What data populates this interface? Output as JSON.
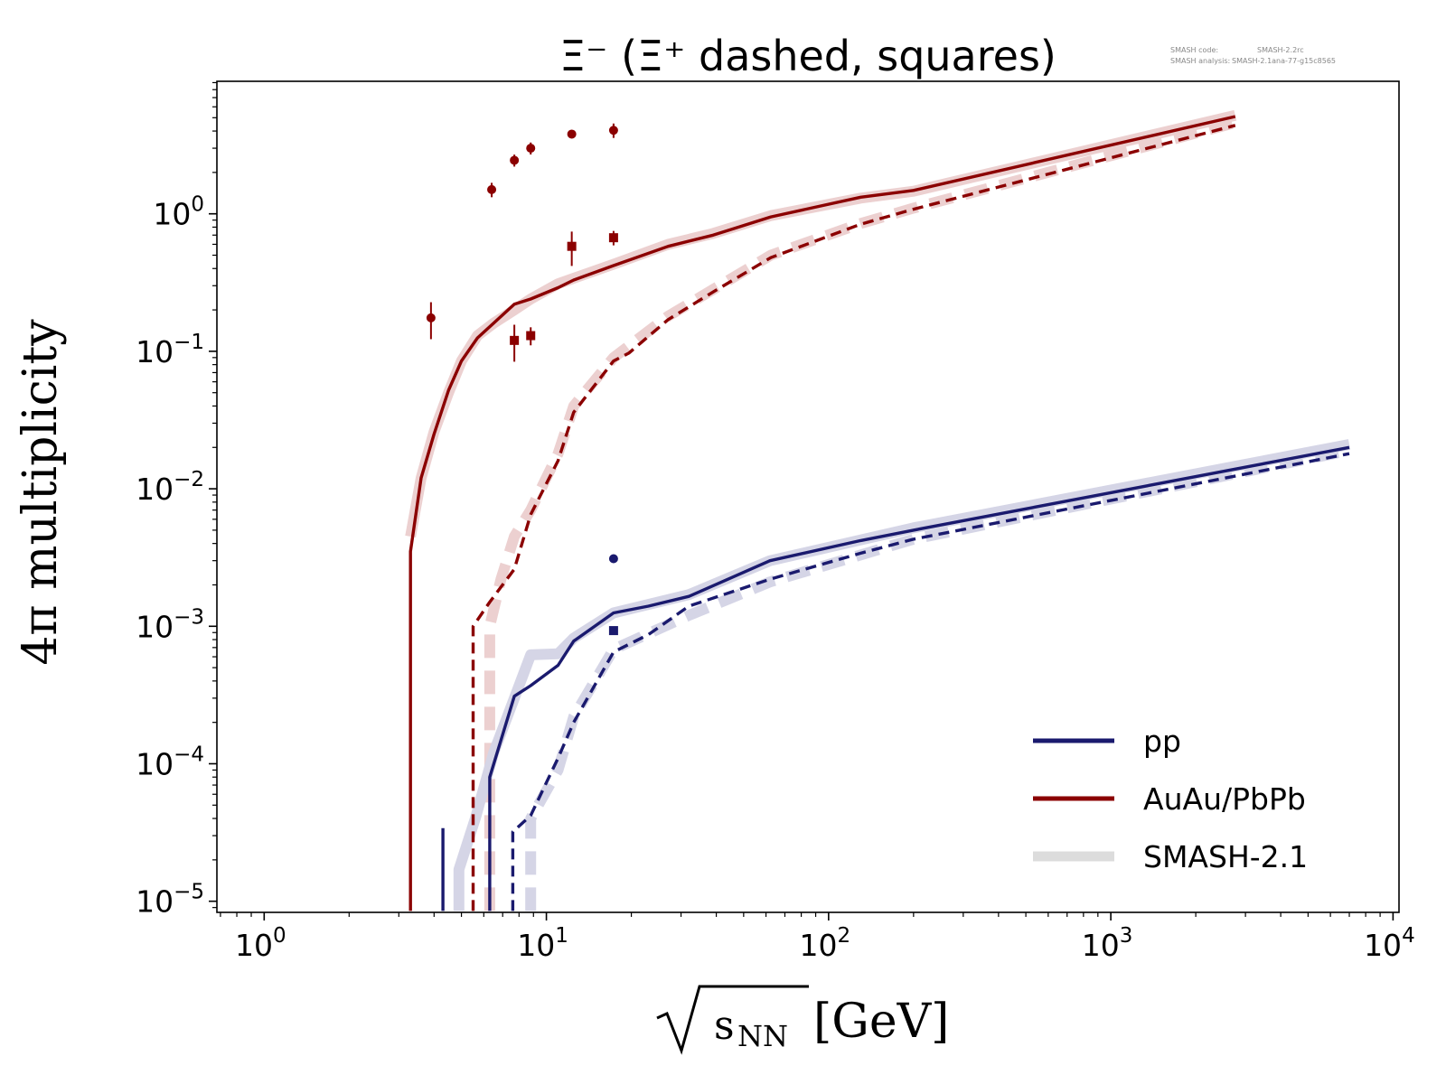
{
  "chart_data": {
    "type": "line",
    "title": "Ξ⁻ (Ξ⁺ dashed, squares)",
    "meta": {
      "code_label": "SMASH code:",
      "code_value": "SMASH-2.2rc",
      "analysis_label": "SMASH analysis:",
      "analysis_value": "SMASH-2.1ana-77-g15c8565"
    },
    "xlabel_radical_arg": "s",
    "xlabel_subscript": "NN",
    "xlabel_unit": "[GeV]",
    "ylabel": "4π multiplicity",
    "x_scale": "log",
    "y_scale": "log",
    "xlim": [
      0.68,
      10500
    ],
    "ylim": [
      8.3e-06,
      9.2
    ],
    "x_ticks": [
      {
        "value": 1,
        "base": "10",
        "exp": "0"
      },
      {
        "value": 10,
        "base": "10",
        "exp": "1"
      },
      {
        "value": 100,
        "base": "10",
        "exp": "2"
      },
      {
        "value": 1000,
        "base": "10",
        "exp": "3"
      },
      {
        "value": 10000,
        "base": "10",
        "exp": "4"
      }
    ],
    "y_ticks": [
      {
        "value": 1e-05,
        "base": "10",
        "exp": "−5"
      },
      {
        "value": 0.0001,
        "base": "10",
        "exp": "−4"
      },
      {
        "value": 0.001,
        "base": "10",
        "exp": "−3"
      },
      {
        "value": 0.01,
        "base": "10",
        "exp": "−2"
      },
      {
        "value": 0.1,
        "base": "10",
        "exp": "−1"
      },
      {
        "value": 1,
        "base": "10",
        "exp": "0"
      }
    ],
    "colors": {
      "pp": "#1a1a6e",
      "auau": "#8b0000",
      "smash_pp": "#d5d5e6",
      "smash_auau": "#ecd0d0",
      "legend_smash": "#dcdcdc"
    },
    "legend": {
      "position": "lower-right",
      "entries": [
        {
          "label": "pp",
          "color": "#1a1a6e"
        },
        {
          "label": "AuAu/PbPb",
          "color": "#8b0000"
        },
        {
          "label": "SMASH-2.1",
          "color": "#dcdcdc"
        }
      ]
    },
    "series": [
      {
        "legend": "AuAu/PbPb",
        "particle": "Xi-",
        "style": "solid",
        "color": "#8b0000",
        "x": [
          3.3,
          3.3,
          3.6,
          4.0,
          4.5,
          5.0,
          5.7,
          6.5,
          7.7,
          8.8,
          11.0,
          12.5,
          17.3,
          27.0,
          39.0,
          62.4,
          130.0,
          200.0,
          2760.0
        ],
        "y": [
          8.5e-06,
          0.0035,
          0.012,
          0.025,
          0.052,
          0.085,
          0.125,
          0.16,
          0.22,
          0.24,
          0.29,
          0.33,
          0.42,
          0.58,
          0.7,
          0.95,
          1.32,
          1.48,
          5.1
        ]
      },
      {
        "legend": "AuAu/PbPb",
        "particle": "Xi+",
        "style": "dashed",
        "color": "#8b0000",
        "x": [
          5.5,
          5.5,
          6.3,
          7.7,
          8.8,
          11.0,
          12.5,
          17.3,
          19.6,
          27.0,
          39.0,
          62.4,
          130.0,
          200.0,
          2760.0
        ],
        "y": [
          8.5e-06,
          0.001,
          0.0015,
          0.0026,
          0.0065,
          0.016,
          0.036,
          0.085,
          0.097,
          0.17,
          0.27,
          0.48,
          0.84,
          1.08,
          4.4
        ]
      },
      {
        "legend": "pp",
        "particle": "Xi-",
        "style": "solid",
        "color": "#1a1a6e",
        "x": [
          6.3,
          6.3,
          7.7,
          8.8,
          11.0,
          12.5,
          17.3,
          23.0,
          32.0,
          62.0,
          130.0,
          200.0,
          7000.0
        ],
        "y": [
          8.5e-06,
          8e-05,
          0.00031,
          0.00037,
          0.00052,
          0.00078,
          0.00125,
          0.0014,
          0.00165,
          0.003,
          0.0042,
          0.005,
          0.02
        ]
      },
      {
        "legend": "pp",
        "particle": "Xi+",
        "style": "dashed",
        "color": "#1a1a6e",
        "x": [
          7.6,
          7.6,
          8.8,
          11.0,
          12.5,
          17.3,
          23.0,
          32.0,
          62.0,
          130.0,
          200.0,
          7000.0
        ],
        "y": [
          8.5e-06,
          3.2e-05,
          4.2e-05,
          0.00011,
          0.0002,
          0.00065,
          0.00087,
          0.0014,
          0.0022,
          0.0034,
          0.0043,
          0.018
        ]
      },
      {
        "legend": "pp",
        "particle": "Xi-",
        "style": "solid",
        "color": "#1a1a6e",
        "x": [
          4.3,
          4.3
        ],
        "y": [
          8.5e-06,
          3.4e-05
        ]
      }
    ],
    "smash_bands": [
      {
        "legend": "SMASH-2.1",
        "particle": "Xi-",
        "system": "AuAu/PbPb",
        "style": "solid",
        "color": "#ecd0d0",
        "x": [
          3.3,
          3.6,
          4.0,
          4.5,
          5.0,
          5.7,
          6.5,
          7.7,
          8.8,
          11.0,
          12.5,
          17.3,
          27.0,
          39.0,
          62.4,
          130.0,
          200.0,
          2760.0
        ],
        "y": [
          0.0045,
          0.012,
          0.026,
          0.05,
          0.085,
          0.13,
          0.16,
          0.2,
          0.24,
          0.31,
          0.34,
          0.43,
          0.6,
          0.72,
          0.97,
          1.3,
          1.46,
          5.2
        ]
      },
      {
        "legend": "SMASH-2.1",
        "particle": "Xi+",
        "system": "AuAu/PbPb",
        "style": "dashed",
        "color": "#ecd0d0",
        "x": [
          6.3,
          6.3,
          6.9,
          7.7,
          8.8,
          11.0,
          12.5,
          17.3,
          27.0,
          62.4,
          130.0,
          200.0,
          2760.0
        ],
        "y": [
          8.5e-06,
          0.001,
          0.0022,
          0.0045,
          0.007,
          0.018,
          0.04,
          0.09,
          0.18,
          0.5,
          0.85,
          1.1,
          4.6
        ]
      },
      {
        "legend": "SMASH-2.1",
        "particle": "Xi-",
        "system": "pp",
        "style": "solid",
        "color": "#d5d5e6",
        "x": [
          4.9,
          4.9,
          5.6,
          6.5,
          7.7,
          8.8,
          11.0,
          12.5,
          17.3,
          32.0,
          62.0,
          200.0,
          7000.0
        ],
        "y": [
          8.5e-06,
          1.7e-05,
          4e-05,
          0.00012,
          0.0003,
          0.00062,
          0.00063,
          0.00082,
          0.00125,
          0.0017,
          0.003,
          0.0052,
          0.021
        ]
      },
      {
        "legend": "SMASH-2.1",
        "particle": "Xi+",
        "system": "pp",
        "style": "dashed",
        "color": "#d5d5e6",
        "x": [
          8.8,
          8.8,
          11.0,
          12.5,
          17.3,
          32.0,
          62.0,
          200.0,
          7000.0
        ],
        "y": [
          8.5e-06,
          4e-05,
          9e-05,
          0.00022,
          0.00068,
          0.0012,
          0.0021,
          0.0043,
          0.019
        ]
      }
    ],
    "data_points": [
      {
        "system": "AuAu/PbPb",
        "particle": "Xi-",
        "marker": "circle",
        "color": "#8b0000",
        "x": [
          3.9,
          6.4,
          7.7,
          8.8,
          12.3,
          17.3
        ],
        "y": [
          0.175,
          1.5,
          2.45,
          3.0,
          3.8,
          4.05
        ],
        "yerr_frac": [
          0.3,
          0.12,
          0.1,
          0.1,
          0.05,
          0.12
        ]
      },
      {
        "system": "AuAu/PbPb",
        "particle": "Xi+",
        "marker": "square",
        "color": "#8b0000",
        "x": [
          7.7,
          8.8,
          12.3,
          17.3
        ],
        "y": [
          0.12,
          0.13,
          0.58,
          0.67
        ],
        "yerr_frac": [
          0.3,
          0.15,
          0.28,
          0.12
        ]
      },
      {
        "system": "pp",
        "particle": "Xi-",
        "marker": "circle",
        "color": "#1a1a6e",
        "x": [
          17.3
        ],
        "y": [
          0.0031
        ],
        "yerr_frac": [
          0.05
        ]
      },
      {
        "system": "pp",
        "particle": "Xi+",
        "marker": "square",
        "color": "#1a1a6e",
        "x": [
          17.3
        ],
        "y": [
          0.00093
        ],
        "yerr_frac": [
          0.05
        ]
      }
    ]
  }
}
